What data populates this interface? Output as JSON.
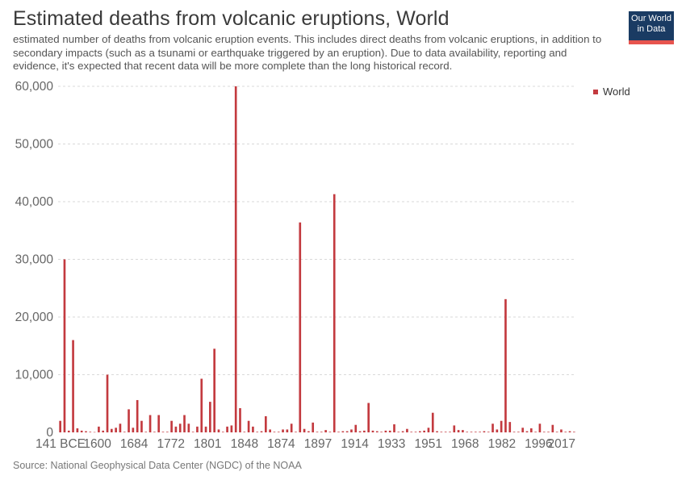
{
  "header": {
    "title": "Estimated deaths from volcanic eruptions, World",
    "subtitle": "estimated number of deaths from volcanic eruption events. This includes direct deaths from volcanic eruptions, in addition to secondary impacts (such as a tsunami or earthquake triggered by an eruption). Due to data availability, reporting and evidence, it's expected that recent data will be more complete than the long historical record."
  },
  "logo": {
    "line1": "Our World",
    "line2": "in Data"
  },
  "legend": {
    "label": "World"
  },
  "source": "Source: National Geophysical Data Center (NGDC) of the NOAA",
  "colors": {
    "bar": "#c33a3f",
    "grid": "#d9d9d9",
    "logo_bg": "#1a3b63",
    "logo_accent": "#e7544e"
  },
  "chart_data": {
    "type": "bar",
    "title": "Estimated deaths from volcanic eruptions, World",
    "xlabel": "",
    "ylabel": "",
    "ylim": [
      0,
      60000
    ],
    "yticks": [
      "0",
      "10,000",
      "20,000",
      "30,000",
      "40,000",
      "50,000",
      "60,000"
    ],
    "xticks": [
      "141 BCE",
      "1600",
      "1684",
      "1772",
      "1801",
      "1848",
      "1874",
      "1897",
      "1914",
      "1933",
      "1951",
      "1968",
      "1982",
      "1996",
      "2017"
    ],
    "grid": true,
    "legend_position": "top-right",
    "series": [
      {
        "name": "World",
        "values": [
          2000,
          30000,
          300,
          16000,
          700,
          300,
          200,
          100,
          50,
          1000,
          300,
          10000,
          600,
          800,
          1500,
          100,
          4000,
          800,
          5600,
          2000,
          100,
          3000,
          100,
          3000,
          100,
          100,
          2000,
          1000,
          1500,
          3000,
          1500,
          100,
          1000,
          9300,
          1000,
          5300,
          14500,
          500,
          100,
          1000,
          1200,
          60000,
          4200,
          100,
          2000,
          1000,
          100,
          200,
          2800,
          500,
          100,
          100,
          500,
          500,
          1500,
          100,
          36400,
          600,
          200,
          1700,
          100,
          100,
          400,
          100,
          41300,
          100,
          200,
          200,
          500,
          1300,
          200,
          300,
          5100,
          300,
          200,
          100,
          300,
          300,
          1400,
          100,
          200,
          600,
          100,
          100,
          200,
          300,
          800,
          3400,
          200,
          100,
          100,
          100,
          1200,
          400,
          400,
          100,
          100,
          100,
          100,
          200,
          100,
          1500,
          500,
          2000,
          23100,
          1800,
          100,
          100,
          800,
          200,
          700,
          100,
          1500,
          100,
          100,
          1300,
          100,
          500,
          100,
          200,
          100
        ]
      }
    ]
  }
}
